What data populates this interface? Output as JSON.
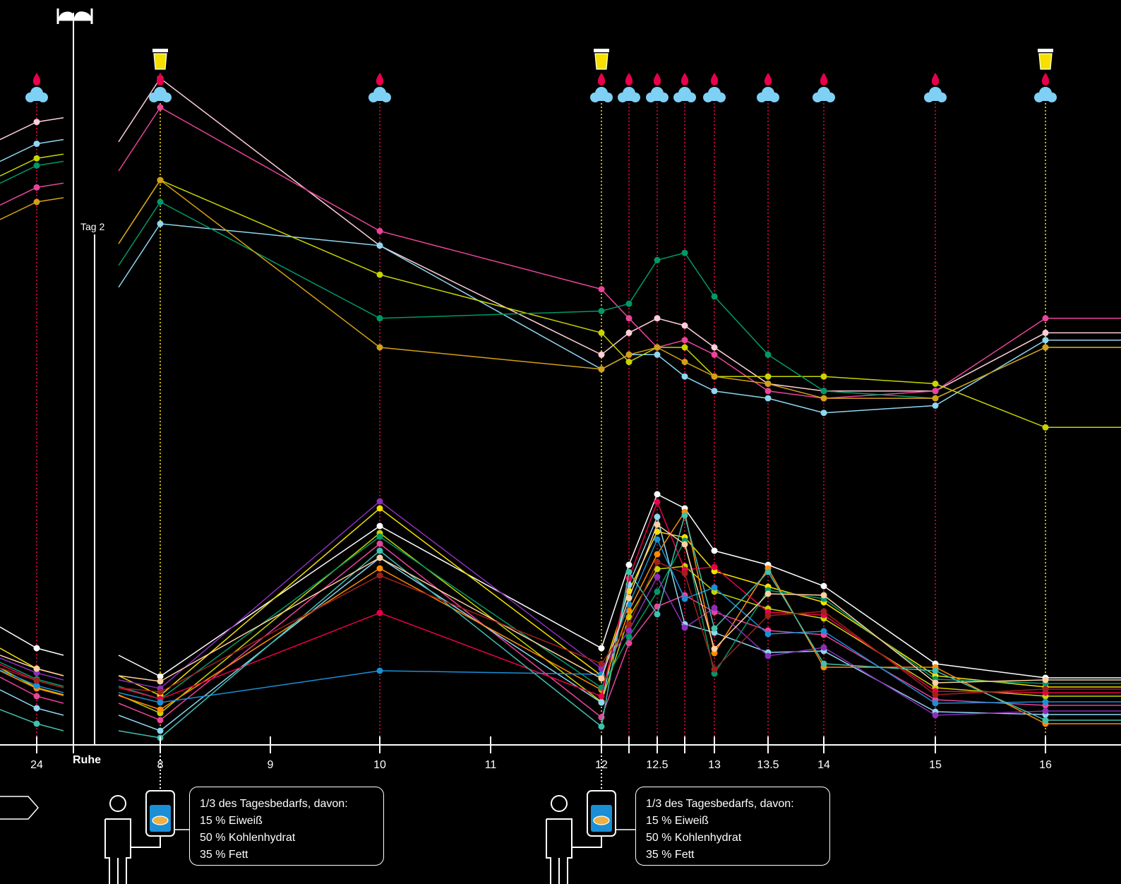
{
  "chart_data": {
    "type": "line",
    "title": "",
    "xlabel": "",
    "ylabel": "",
    "x_ticks": [
      "24",
      "Ruhe",
      "8",
      "9",
      "10",
      "11",
      "12",
      "12.5",
      "13",
      "13.5",
      "14",
      "15",
      "16"
    ],
    "rest_label": "Ruhe",
    "day_label": "Tag 2",
    "sample_times": [
      "23.9",
      "8",
      "10",
      "12",
      "12.25",
      "12.5",
      "12.75",
      "13",
      "13.5",
      "14",
      "15",
      "16"
    ],
    "urine_sample_times": [
      "8",
      "12",
      "16"
    ],
    "meals": [
      {
        "time": "8",
        "lines": [
          "1/3 des Tagesbedarfs, davon:",
          "15 % Eiweiß",
          "50 % Kohlenhydrat",
          "35 % Fett"
        ]
      },
      {
        "time": "12",
        "lines": [
          "1/3 des Tagesbedarfs, davon:",
          "15 % Eiweiß",
          "50 % Kohlenhydrat",
          "35 % Fett"
        ]
      }
    ],
    "series": [
      {
        "color": "#ffd0d8",
        "group": "upper",
        "values": [
          9.1,
          9.7,
          7.4,
          5.9,
          6.2,
          6.4,
          6.3,
          6.0,
          5.5,
          5.4,
          5.4,
          6.2
        ]
      },
      {
        "color": "#e8449a",
        "group": "upper",
        "values": [
          8.2,
          9.3,
          7.6,
          6.8,
          6.4,
          6.0,
          6.1,
          5.9,
          5.4,
          5.3,
          5.4,
          6.4
        ]
      },
      {
        "color": "#8fd6f0",
        "group": "upper",
        "values": [
          8.8,
          7.7,
          7.4,
          5.7,
          5.9,
          5.9,
          5.6,
          5.4,
          5.3,
          5.1,
          5.2,
          6.1
        ]
      },
      {
        "color": "#c8d400",
        "group": "upper",
        "values": [
          8.6,
          8.3,
          7.0,
          6.2,
          5.8,
          6.0,
          6.0,
          5.6,
          5.6,
          5.6,
          5.5,
          4.9
        ]
      },
      {
        "color": "#009966",
        "group": "upper",
        "values": [
          8.5,
          8.0,
          6.4,
          6.5,
          6.6,
          7.2,
          7.3,
          6.7,
          5.9,
          5.4,
          5.3,
          6.0
        ]
      },
      {
        "color": "#d4a017",
        "group": "upper",
        "values": [
          8.0,
          8.3,
          6.0,
          5.7,
          5.9,
          6.0,
          5.8,
          5.6,
          5.5,
          5.3,
          5.3,
          6.0
        ]
      }
    ]
  },
  "icons": {
    "blood_drop": "blood-drop-icon",
    "urine_cup": "urine-cup-icon",
    "cloud": "breath-cloud-icon",
    "bed": "bed-icon",
    "person": "person-icon",
    "iv_bag": "meal-bag-icon"
  },
  "colors": {
    "background": "#000000",
    "axis": "#ffffff",
    "blood_guide": "#e8004a",
    "urine_guide": "#f5e000",
    "cloud": "#7fd0f5",
    "bag_fill": "#1a8fd6"
  }
}
